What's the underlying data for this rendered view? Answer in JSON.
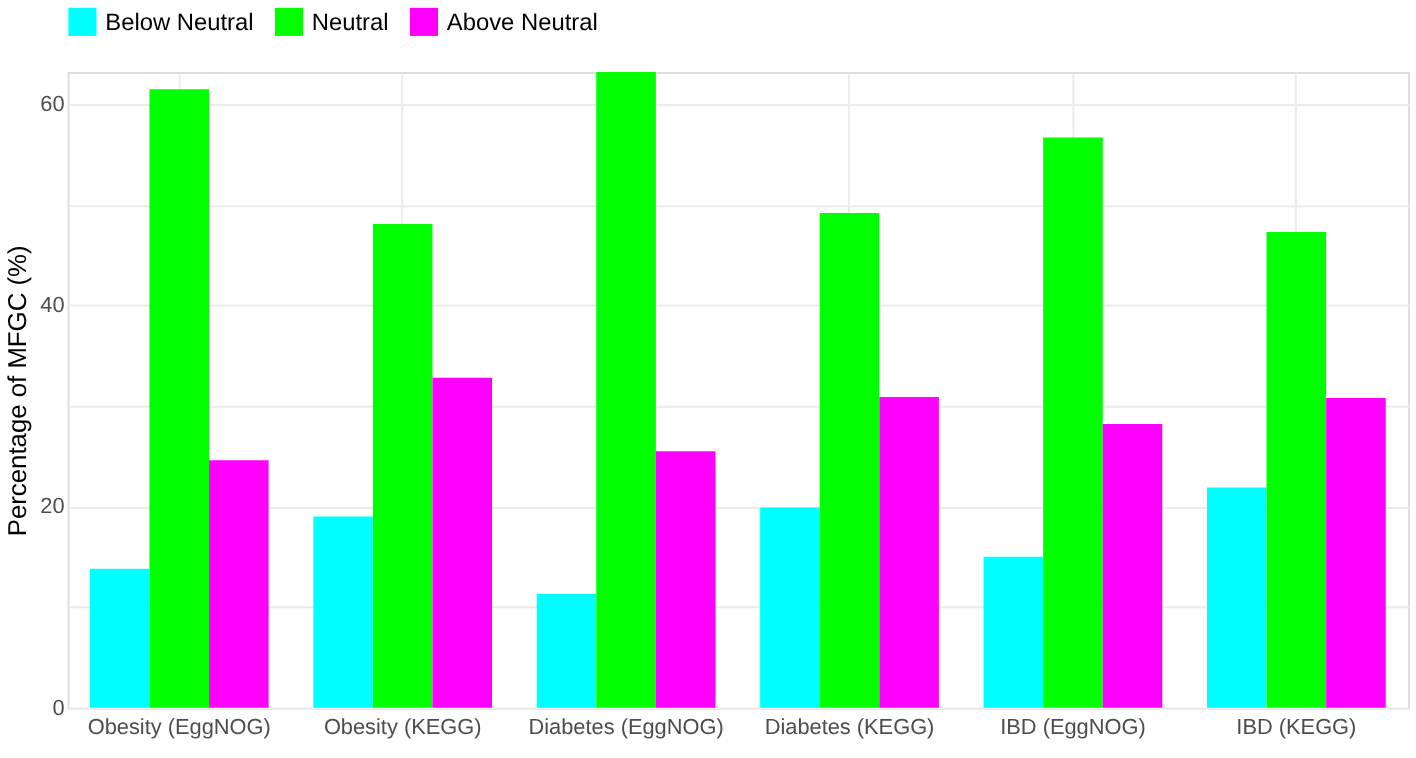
{
  "chart_data": {
    "type": "bar",
    "ylabel": "Percentage of MFGC (%)",
    "categories": [
      "Obesity (EggNOG)",
      "Obesity (KEGG)",
      "Diabetes (EggNOG)",
      "Diabetes  (KEGG)",
      "IBD (EggNOG)",
      "IBD (KEGG)"
    ],
    "series": [
      {
        "name": "Below Neutral",
        "color": "#00ffff",
        "values": [
          13.8,
          19.0,
          11.3,
          19.9,
          15.0,
          21.9
        ]
      },
      {
        "name": "Neutral",
        "color": "#00ff00",
        "values": [
          61.5,
          48.1,
          63.2,
          49.2,
          56.7,
          47.3
        ]
      },
      {
        "name": "Above Neutral",
        "color": "#ff00ff",
        "values": [
          24.6,
          32.8,
          25.5,
          30.9,
          28.2,
          30.8
        ]
      }
    ],
    "ylim": [
      0,
      63.2
    ],
    "yticks": [
      0,
      {
        "value": 10,
        "label": null
      },
      20,
      {
        "value": 30,
        "label": null
      },
      40,
      {
        "value": 50,
        "label": null
      },
      60
    ],
    "grid": true,
    "legend": "top"
  }
}
